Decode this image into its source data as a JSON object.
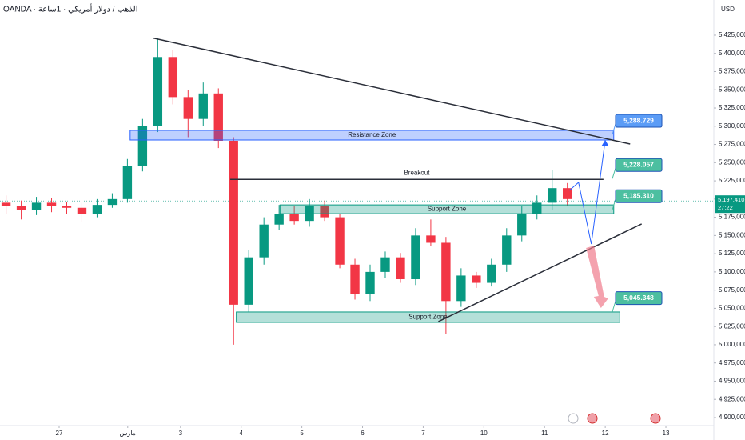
{
  "chart_data": {
    "type": "candlestick",
    "header": "OANDA · الذهب / دولار أمريكي · 1ساعة",
    "unit": "USD",
    "xlim": [
      -0.975,
      10.79
    ],
    "ylim": [
      4889000,
      5473300
    ],
    "grid": false,
    "xticks": [
      {
        "value": 0,
        "label": "27"
      },
      {
        "value": 1.13,
        "label": "مارس"
      },
      {
        "value": 2,
        "label": "3"
      },
      {
        "value": 3,
        "label": "4"
      },
      {
        "value": 4,
        "label": "5"
      },
      {
        "value": 5,
        "label": "6"
      },
      {
        "value": 6,
        "label": "7"
      },
      {
        "value": 7,
        "label": "10"
      },
      {
        "value": 8,
        "label": "11"
      },
      {
        "value": 9,
        "label": "12"
      },
      {
        "value": 10,
        "label": "13"
      }
    ],
    "yticks": [
      {
        "value": 4900000,
        "label": "4,900,000"
      },
      {
        "value": 4925000,
        "label": "4,925,000"
      },
      {
        "value": 4950000,
        "label": "4,950,000"
      },
      {
        "value": 4975000,
        "label": "4,975,000"
      },
      {
        "value": 5000000,
        "label": "5,000,000"
      },
      {
        "value": 5025000,
        "label": "5,025,000"
      },
      {
        "value": 5050000,
        "label": "5,050,000"
      },
      {
        "value": 5075000,
        "label": "5,075,000"
      },
      {
        "value": 5100000,
        "label": "5,100,000"
      },
      {
        "value": 5125000,
        "label": "5,125,000"
      },
      {
        "value": 5150000,
        "label": "5,150,000"
      },
      {
        "value": 5175000,
        "label": "5,175,000"
      },
      {
        "value": 5200000,
        "label": "5,200,000"
      },
      {
        "value": 5225000,
        "label": "5,225,000"
      },
      {
        "value": 5250000,
        "label": "5,250,000"
      },
      {
        "value": 5275000,
        "label": "5,275,000"
      },
      {
        "value": 5300000,
        "label": "5,300,000"
      },
      {
        "value": 5325000,
        "label": "5,325,000"
      },
      {
        "value": 5350000,
        "label": "5,350,000"
      },
      {
        "value": 5375000,
        "label": "5,375,000"
      },
      {
        "value": 5400000,
        "label": "5,400,000"
      },
      {
        "value": 5425000,
        "label": "5,425,000"
      }
    ],
    "up_color": "#089981",
    "down_color": "#f23645",
    "candles": {
      "x": [
        -0.875,
        -0.625,
        -0.375,
        -0.125,
        0.125,
        0.375,
        0.625,
        0.875,
        1.125,
        1.375,
        1.625,
        1.875,
        2.125,
        2.375,
        2.625,
        2.875,
        3.125,
        3.375,
        3.625,
        3.875,
        4.125,
        4.375,
        4.625,
        4.875,
        5.125,
        5.375,
        5.625,
        5.875,
        6.125,
        6.375,
        6.625,
        6.875,
        7.125,
        7.375,
        7.625,
        7.875,
        8.125,
        8.375
      ],
      "open": [
        5195000,
        5190000,
        5185000,
        5195000,
        5190000,
        5188000,
        5180000,
        5192000,
        5200000,
        5245000,
        5300000,
        5395000,
        5340000,
        5310000,
        5345000,
        5280000,
        5055000,
        5120000,
        5165000,
        5180000,
        5170000,
        5190000,
        5175000,
        5110000,
        5070000,
        5100000,
        5120000,
        5090000,
        5150000,
        5140000,
        5060000,
        5095000,
        5085000,
        5110000,
        5150000,
        5180000,
        5195000,
        5215000
      ],
      "high": [
        5205000,
        5198000,
        5203000,
        5202000,
        5196000,
        5195000,
        5200000,
        5208000,
        5255000,
        5310000,
        5421000,
        5405000,
        5350000,
        5360000,
        5352000,
        5285000,
        5130000,
        5175000,
        5192000,
        5190000,
        5200000,
        5198000,
        5180000,
        5118000,
        5110000,
        5128000,
        5126000,
        5160000,
        5172000,
        5148000,
        5105000,
        5100000,
        5118000,
        5160000,
        5190000,
        5205000,
        5240000,
        5222000
      ],
      "low": [
        5180000,
        5172000,
        5178000,
        5182000,
        5180000,
        5168000,
        5175000,
        5188000,
        5195000,
        5238000,
        5292000,
        5330000,
        5285000,
        5300000,
        5270000,
        5000000,
        5045000,
        5110000,
        5158000,
        5165000,
        5162000,
        5170000,
        5105000,
        5062000,
        5060000,
        5092000,
        5085000,
        5082000,
        5135000,
        5015000,
        5052000,
        5078000,
        5080000,
        5100000,
        5142000,
        5172000,
        5185000,
        5190000
      ],
      "close": [
        5190000,
        5185000,
        5195000,
        5190000,
        5188000,
        5180000,
        5192000,
        5200000,
        5245000,
        5300000,
        5395000,
        5340000,
        5310000,
        5345000,
        5280000,
        5055000,
        5120000,
        5165000,
        5180000,
        5170000,
        5190000,
        5175000,
        5110000,
        5070000,
        5100000,
        5120000,
        5090000,
        5150000,
        5140000,
        5060000,
        5095000,
        5085000,
        5110000,
        5150000,
        5180000,
        5195000,
        5215000,
        5200000
      ]
    },
    "current_price": {
      "value": 5197410,
      "label": "5,197.410"
    },
    "countdown": "27:22",
    "zones": [
      {
        "label": "Resistance Zone",
        "x": [
          1.17,
          9.14
        ],
        "y": [
          5281100,
          5294300
        ],
        "color": "#2962ff"
      },
      {
        "label": "Support Zone",
        "x": [
          3.64,
          9.14
        ],
        "y": [
          5179900,
          5192000
        ],
        "color": "#089981"
      },
      {
        "label": "Support Zone",
        "x": [
          2.92,
          9.24
        ],
        "y": [
          5030700,
          5045000
        ],
        "color": "#089981"
      }
    ],
    "lines": [
      {
        "x": [
          1.55,
          9.41
        ],
        "y": [
          5421000,
          5275600
        ],
        "color": "#2a2e39"
      },
      {
        "x": [
          6.25,
          9.6
        ],
        "y": [
          5031800,
          5165800
        ],
        "color": "#2a2e39"
      },
      {
        "label": "Breakout",
        "x": [
          2.82,
          8.97
        ],
        "y": [
          5227000,
          5227000
        ],
        "color": "#2a2e39"
      }
    ],
    "projection": {
      "x": [
        8.41,
        8.56,
        8.77,
        9.0
      ],
      "y": [
        5211900,
        5222900,
        5138300,
        5281100
      ],
      "color": "#2962ff"
    },
    "drop_arrow": {
      "x": [
        8.71,
        8.93
      ],
      "y": [
        5132800,
        5050400
      ],
      "color": "#f07b8b"
    },
    "levels": [
      {
        "label": "5,288.729",
        "value": 5288729,
        "color": "#5b9cf6"
      },
      {
        "label": "5,228.057",
        "value": 5228057,
        "color": "#4cbfa0"
      },
      {
        "label": "5,185.310",
        "value": 5185310,
        "color": "#4cbfa0"
      },
      {
        "label": "5,045.348",
        "value": 5045348,
        "color": "#4cbfa0"
      }
    ]
  }
}
